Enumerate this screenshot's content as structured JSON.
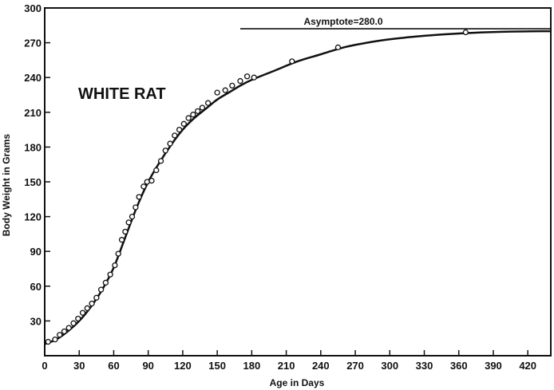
{
  "chart_data": {
    "type": "scatter",
    "title": "WHITE RAT",
    "xlabel": "Age in Days",
    "ylabel": "Body Weight in Grams",
    "xlim": [
      0,
      440
    ],
    "ylim": [
      0,
      300
    ],
    "x_ticks": [
      0,
      30,
      60,
      90,
      120,
      150,
      180,
      210,
      240,
      270,
      300,
      330,
      360,
      390,
      420
    ],
    "y_ticks": [
      30,
      60,
      90,
      120,
      150,
      180,
      210,
      240,
      270,
      300
    ],
    "grid": false,
    "asymptote": {
      "label": "Asymptote=280.0",
      "value": 280,
      "x_start": 170,
      "x_end": 440
    },
    "series": [
      {
        "kind": "observed-points",
        "marker": "open-circle",
        "points": [
          [
            3,
            12
          ],
          [
            9,
            14
          ],
          [
            13,
            18
          ],
          [
            17,
            21
          ],
          [
            21,
            24
          ],
          [
            25,
            28
          ],
          [
            29,
            32
          ],
          [
            33,
            37
          ],
          [
            37,
            41
          ],
          [
            41,
            45
          ],
          [
            45,
            50
          ],
          [
            49,
            57
          ],
          [
            53,
            63
          ],
          [
            57,
            70
          ],
          [
            61,
            78
          ],
          [
            64,
            88
          ],
          [
            67,
            100
          ],
          [
            70,
            107
          ],
          [
            73,
            115
          ],
          [
            76,
            120
          ],
          [
            79,
            128
          ],
          [
            82,
            137
          ],
          [
            86,
            146
          ],
          [
            89,
            150
          ],
          [
            93,
            151
          ],
          [
            97,
            160
          ],
          [
            101,
            168
          ],
          [
            105,
            177
          ],
          [
            109,
            183
          ],
          [
            113,
            190
          ],
          [
            117,
            195
          ],
          [
            121,
            200
          ],
          [
            125,
            205
          ],
          [
            129,
            208
          ],
          [
            133,
            211
          ],
          [
            137,
            214
          ],
          [
            142,
            218
          ],
          [
            150,
            227
          ],
          [
            157,
            229
          ],
          [
            163,
            233
          ],
          [
            170,
            237
          ],
          [
            176,
            241
          ],
          [
            182,
            240
          ],
          [
            215,
            254
          ],
          [
            255,
            266
          ],
          [
            366,
            279
          ]
        ]
      },
      {
        "kind": "fitted-curve",
        "points": [
          [
            0,
            10
          ],
          [
            10,
            14
          ],
          [
            20,
            21
          ],
          [
            30,
            30
          ],
          [
            40,
            42
          ],
          [
            50,
            57
          ],
          [
            60,
            76
          ],
          [
            70,
            102
          ],
          [
            80,
            128
          ],
          [
            90,
            150
          ],
          [
            100,
            167
          ],
          [
            110,
            182
          ],
          [
            120,
            195
          ],
          [
            130,
            205
          ],
          [
            140,
            213
          ],
          [
            150,
            221
          ],
          [
            160,
            227
          ],
          [
            170,
            233
          ],
          [
            180,
            238
          ],
          [
            200,
            246
          ],
          [
            220,
            254
          ],
          [
            240,
            260
          ],
          [
            260,
            266
          ],
          [
            280,
            270
          ],
          [
            300,
            273
          ],
          [
            330,
            276
          ],
          [
            360,
            278
          ],
          [
            400,
            279.5
          ],
          [
            440,
            280
          ]
        ]
      }
    ]
  }
}
